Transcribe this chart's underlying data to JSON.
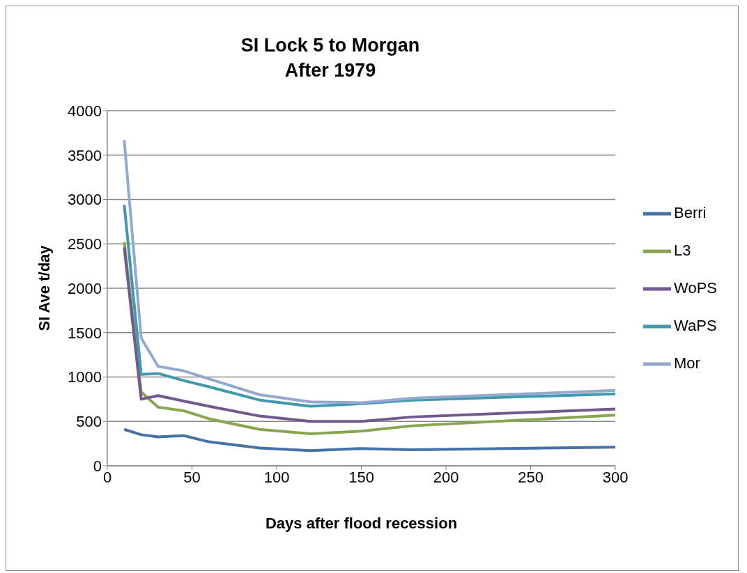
{
  "chart_data": {
    "type": "line",
    "title": "SI Lock 5 to Morgan\nAfter 1979",
    "xlabel": "Days after flood recession",
    "ylabel": "SI Ave t/day",
    "x": [
      10,
      20,
      30,
      45,
      60,
      90,
      120,
      150,
      180,
      300
    ],
    "series": [
      {
        "name": "Berri",
        "color": "#4572a7",
        "values": [
          410,
          350,
          325,
          340,
          270,
          200,
          170,
          195,
          180,
          210
        ]
      },
      {
        "name": "L3",
        "color": "#89a54e",
        "values": [
          2520,
          830,
          660,
          620,
          530,
          410,
          360,
          390,
          450,
          570
        ]
      },
      {
        "name": "WoPS",
        "color": "#71588f",
        "values": [
          2460,
          750,
          790,
          730,
          670,
          560,
          500,
          500,
          550,
          640
        ]
      },
      {
        "name": "WaPS",
        "color": "#4198af",
        "values": [
          2940,
          1030,
          1040,
          960,
          890,
          740,
          670,
          700,
          740,
          810
        ]
      },
      {
        "name": "Mor",
        "color": "#93a9cf",
        "values": [
          3670,
          1440,
          1120,
          1070,
          980,
          800,
          720,
          710,
          760,
          850
        ]
      }
    ],
    "xlim": [
      0,
      300
    ],
    "xticks": [
      0,
      50,
      100,
      150,
      200,
      250,
      300
    ],
    "ylim": [
      0,
      4000
    ],
    "yticks": [
      0,
      500,
      1000,
      1500,
      2000,
      2500,
      3000,
      3500,
      4000
    ],
    "grid": "y",
    "legend": "right",
    "marker": "none",
    "line_style": "solid"
  }
}
